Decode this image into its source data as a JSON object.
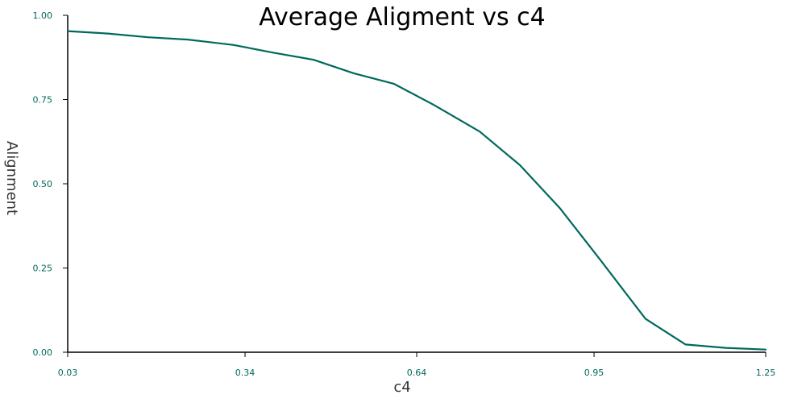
{
  "chart_data": {
    "type": "line",
    "title": "Average Aligment vs c4",
    "xlabel": "c4",
    "ylabel": "Alignment",
    "xlim": [
      0.03,
      1.25
    ],
    "ylim": [
      0.0,
      1.0
    ],
    "x_ticks": [
      "0.03",
      "0.34",
      "0.64",
      "0.95",
      "1.25"
    ],
    "y_ticks": [
      "0.00",
      "0.25",
      "0.50",
      "0.75",
      "1.00"
    ],
    "grid": false,
    "colors": {
      "line": "#00695c",
      "tick_text": "#00695c",
      "axis": "#000000"
    },
    "series": [
      {
        "x": [
          0.03,
          0.1,
          0.17,
          0.24,
          0.32,
          0.39,
          0.46,
          0.53,
          0.6,
          0.67,
          0.75,
          0.82,
          0.89,
          0.96,
          1.04,
          1.11,
          1.18,
          1.25
        ],
        "values": [
          0.953,
          0.946,
          0.935,
          0.928,
          0.912,
          0.889,
          0.868,
          0.828,
          0.797,
          0.734,
          0.655,
          0.556,
          0.428,
          0.276,
          0.099,
          0.023,
          0.013,
          0.008
        ]
      }
    ]
  }
}
